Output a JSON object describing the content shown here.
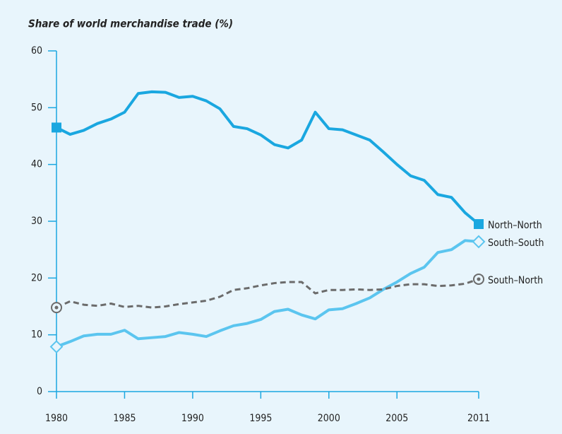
{
  "chart_data": {
    "type": "line",
    "title": "Share of world merchandise trade (%)",
    "x": [
      1980,
      1981,
      1982,
      1983,
      1984,
      1985,
      1986,
      1987,
      1988,
      1989,
      1990,
      1991,
      1992,
      1993,
      1994,
      1995,
      1996,
      1997,
      1998,
      1999,
      2000,
      2001,
      2002,
      2003,
      2004,
      2005,
      2006,
      2007,
      2008,
      2009,
      2010,
      2011
    ],
    "xlim": [
      1980,
      2011
    ],
    "xticks": [
      1980,
      1985,
      1990,
      1995,
      2000,
      2005,
      2011
    ],
    "ylim": [
      0,
      60
    ],
    "yticks": [
      0,
      10,
      20,
      30,
      40,
      50,
      60
    ],
    "grid": false,
    "series": [
      {
        "name": "North–North",
        "color": "#1aa7e0",
        "dashed": false,
        "marker": "square",
        "values": [
          46.5,
          45.3,
          46,
          47.2,
          48,
          49.2,
          52.5,
          52.8,
          52.7,
          51.8,
          52,
          51.2,
          49.8,
          46.7,
          46.3,
          45.2,
          43.5,
          42.9,
          44.3,
          49.2,
          46.3,
          46.1,
          45.2,
          44.3,
          42.2,
          40,
          38,
          37.2,
          34.7,
          34.2,
          31.5,
          29.5
        ]
      },
      {
        "name": "South–South",
        "color": "#5bc5ef",
        "dashed": false,
        "marker": "diamond",
        "values": [
          7.9,
          8.8,
          9.8,
          10.1,
          10.1,
          10.8,
          9.3,
          9.5,
          9.7,
          10.4,
          10.1,
          9.7,
          10.7,
          11.6,
          12,
          12.7,
          14.1,
          14.5,
          13.5,
          12.8,
          14.4,
          14.6,
          15.5,
          16.5,
          18,
          19.3,
          20.8,
          21.9,
          24.5,
          25,
          26.6,
          26.4
        ]
      },
      {
        "name": "South–North",
        "color": "#6b6b6b",
        "dashed": true,
        "marker": "circle",
        "values": [
          14.8,
          15.9,
          15.3,
          15.1,
          15.5,
          14.9,
          15.1,
          14.8,
          15,
          15.4,
          15.7,
          16,
          16.7,
          17.9,
          18.2,
          18.7,
          19.1,
          19.3,
          19.3,
          17.3,
          17.9,
          17.9,
          18,
          17.9,
          18,
          18.6,
          18.9,
          18.9,
          18.6,
          18.7,
          19,
          19.8
        ]
      }
    ]
  }
}
